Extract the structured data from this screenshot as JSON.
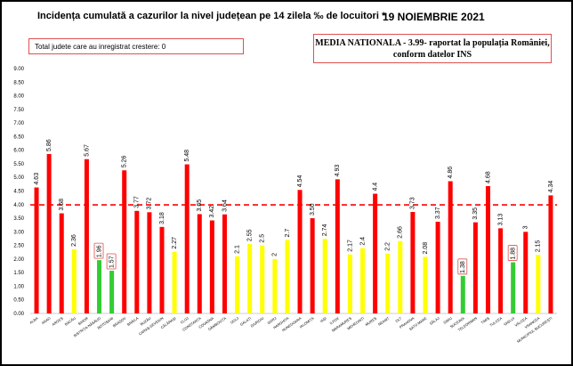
{
  "header": {
    "title": "Incidența cumulată a cazurilor la nivel județean pe 14 zilela ‰ de locuitori *",
    "date": "19 NOIEMBRIE 2021"
  },
  "info": {
    "growth_text": "Total judete care au inregistrat crestere: 0",
    "national_line1": "MEDIA NATIONALA - 3.99-  raportat la populația României,",
    "national_line2": "conform datelor INS"
  },
  "colors": {
    "red": "#ff0000",
    "yellow": "#ffff00",
    "green": "#33cc33",
    "reference": "#ff0000",
    "box_border": "#e05050"
  },
  "chart_data": {
    "type": "bar",
    "title": "Incidența cumulată a cazurilor la nivel județean pe 14 zilela ‰ de locuitori *",
    "xlabel": "",
    "ylabel": "",
    "ylim": [
      0,
      9
    ],
    "yticks": [
      "0.00",
      "0.50",
      "1.00",
      "1.50",
      "2.00",
      "2.50",
      "3.00",
      "3.50",
      "4.00",
      "4.50",
      "5.00",
      "5.50",
      "6.00",
      "6.50",
      "7.00",
      "7.50",
      "8.00",
      "8.50",
      "9.00"
    ],
    "reference_line": 3.99,
    "categories": [
      "ALBA",
      "ARAD",
      "ARGEȘ",
      "BACĂU",
      "BIHOR",
      "BISTRIȚA-NĂSĂUD",
      "BOTOȘANI",
      "BRAȘOV",
      "BRĂILA",
      "BUZĂU",
      "CARAȘ-SEVERIN",
      "CĂLĂRAȘI",
      "CLUJ",
      "CONSTANȚA",
      "COVASNA",
      "DÂMBOVIȚA",
      "DOLJ",
      "GALAȚI",
      "GIURGIU",
      "GORJ",
      "HARGHITA",
      "HUNEDOARA",
      "IALOMIȚA",
      "IAȘI",
      "ILFOV",
      "MARAMUREȘ",
      "MEHEDINȚI",
      "MUREȘ",
      "NEAMȚ",
      "OLT",
      "PRAHOVA",
      "SATU MARE",
      "SĂLAJ",
      "SIBIU",
      "SUCEAVA",
      "TELEORMAN",
      "TIMIȘ",
      "TULCEA",
      "VASLUI",
      "VÂLCEA",
      "VRANCEA",
      "MUNICIPIUL BUCUREȘTI"
    ],
    "values": [
      4.63,
      5.86,
      3.68,
      2.36,
      5.67,
      1.96,
      1.57,
      5.26,
      3.77,
      3.72,
      3.18,
      2.27,
      5.48,
      3.65,
      3.42,
      3.64,
      2.1,
      2.55,
      2.5,
      2.0,
      2.7,
      4.54,
      3.5,
      2.74,
      4.93,
      2.17,
      2.4,
      4.4,
      2.2,
      2.66,
      3.73,
      2.08,
      3.37,
      4.86,
      1.38,
      3.35,
      4.68,
      3.13,
      1.88,
      3.0,
      2.15,
      4.34
    ],
    "labels": [
      "4.63",
      "5.86",
      "3.68",
      "2.36",
      "5.67",
      "1.96",
      "1.57",
      "5.26",
      "3.77",
      "3.72",
      "3.18",
      "2.27",
      "5.48",
      "3.65",
      "3.42",
      "3.64",
      "2.1",
      "2.55",
      "2.5",
      "2",
      "2.7",
      "4.54",
      "3.50",
      "2.74",
      "4.93",
      "2.17",
      "2.4",
      "4.4",
      "2.2",
      "2.66",
      "3.73",
      "2.08",
      "3.37",
      "4.86",
      "1.38",
      "3.35",
      "4.68",
      "3.13",
      "1.88",
      "3",
      "2.15",
      "4.34"
    ],
    "colors": [
      "red",
      "red",
      "red",
      "yellow",
      "red",
      "green",
      "green",
      "red",
      "red",
      "red",
      "red",
      "yellow",
      "red",
      "red",
      "red",
      "red",
      "yellow",
      "yellow",
      "yellow",
      "yellow",
      "yellow",
      "red",
      "red",
      "yellow",
      "red",
      "yellow",
      "yellow",
      "red",
      "yellow",
      "yellow",
      "red",
      "yellow",
      "red",
      "red",
      "green",
      "red",
      "red",
      "red",
      "green",
      "red",
      "yellow",
      "red"
    ],
    "boxed_labels": [
      "BISTRIȚA-NĂSĂUD",
      "BOTOȘANI",
      "SUCEAVA",
      "VASLUI"
    ]
  }
}
